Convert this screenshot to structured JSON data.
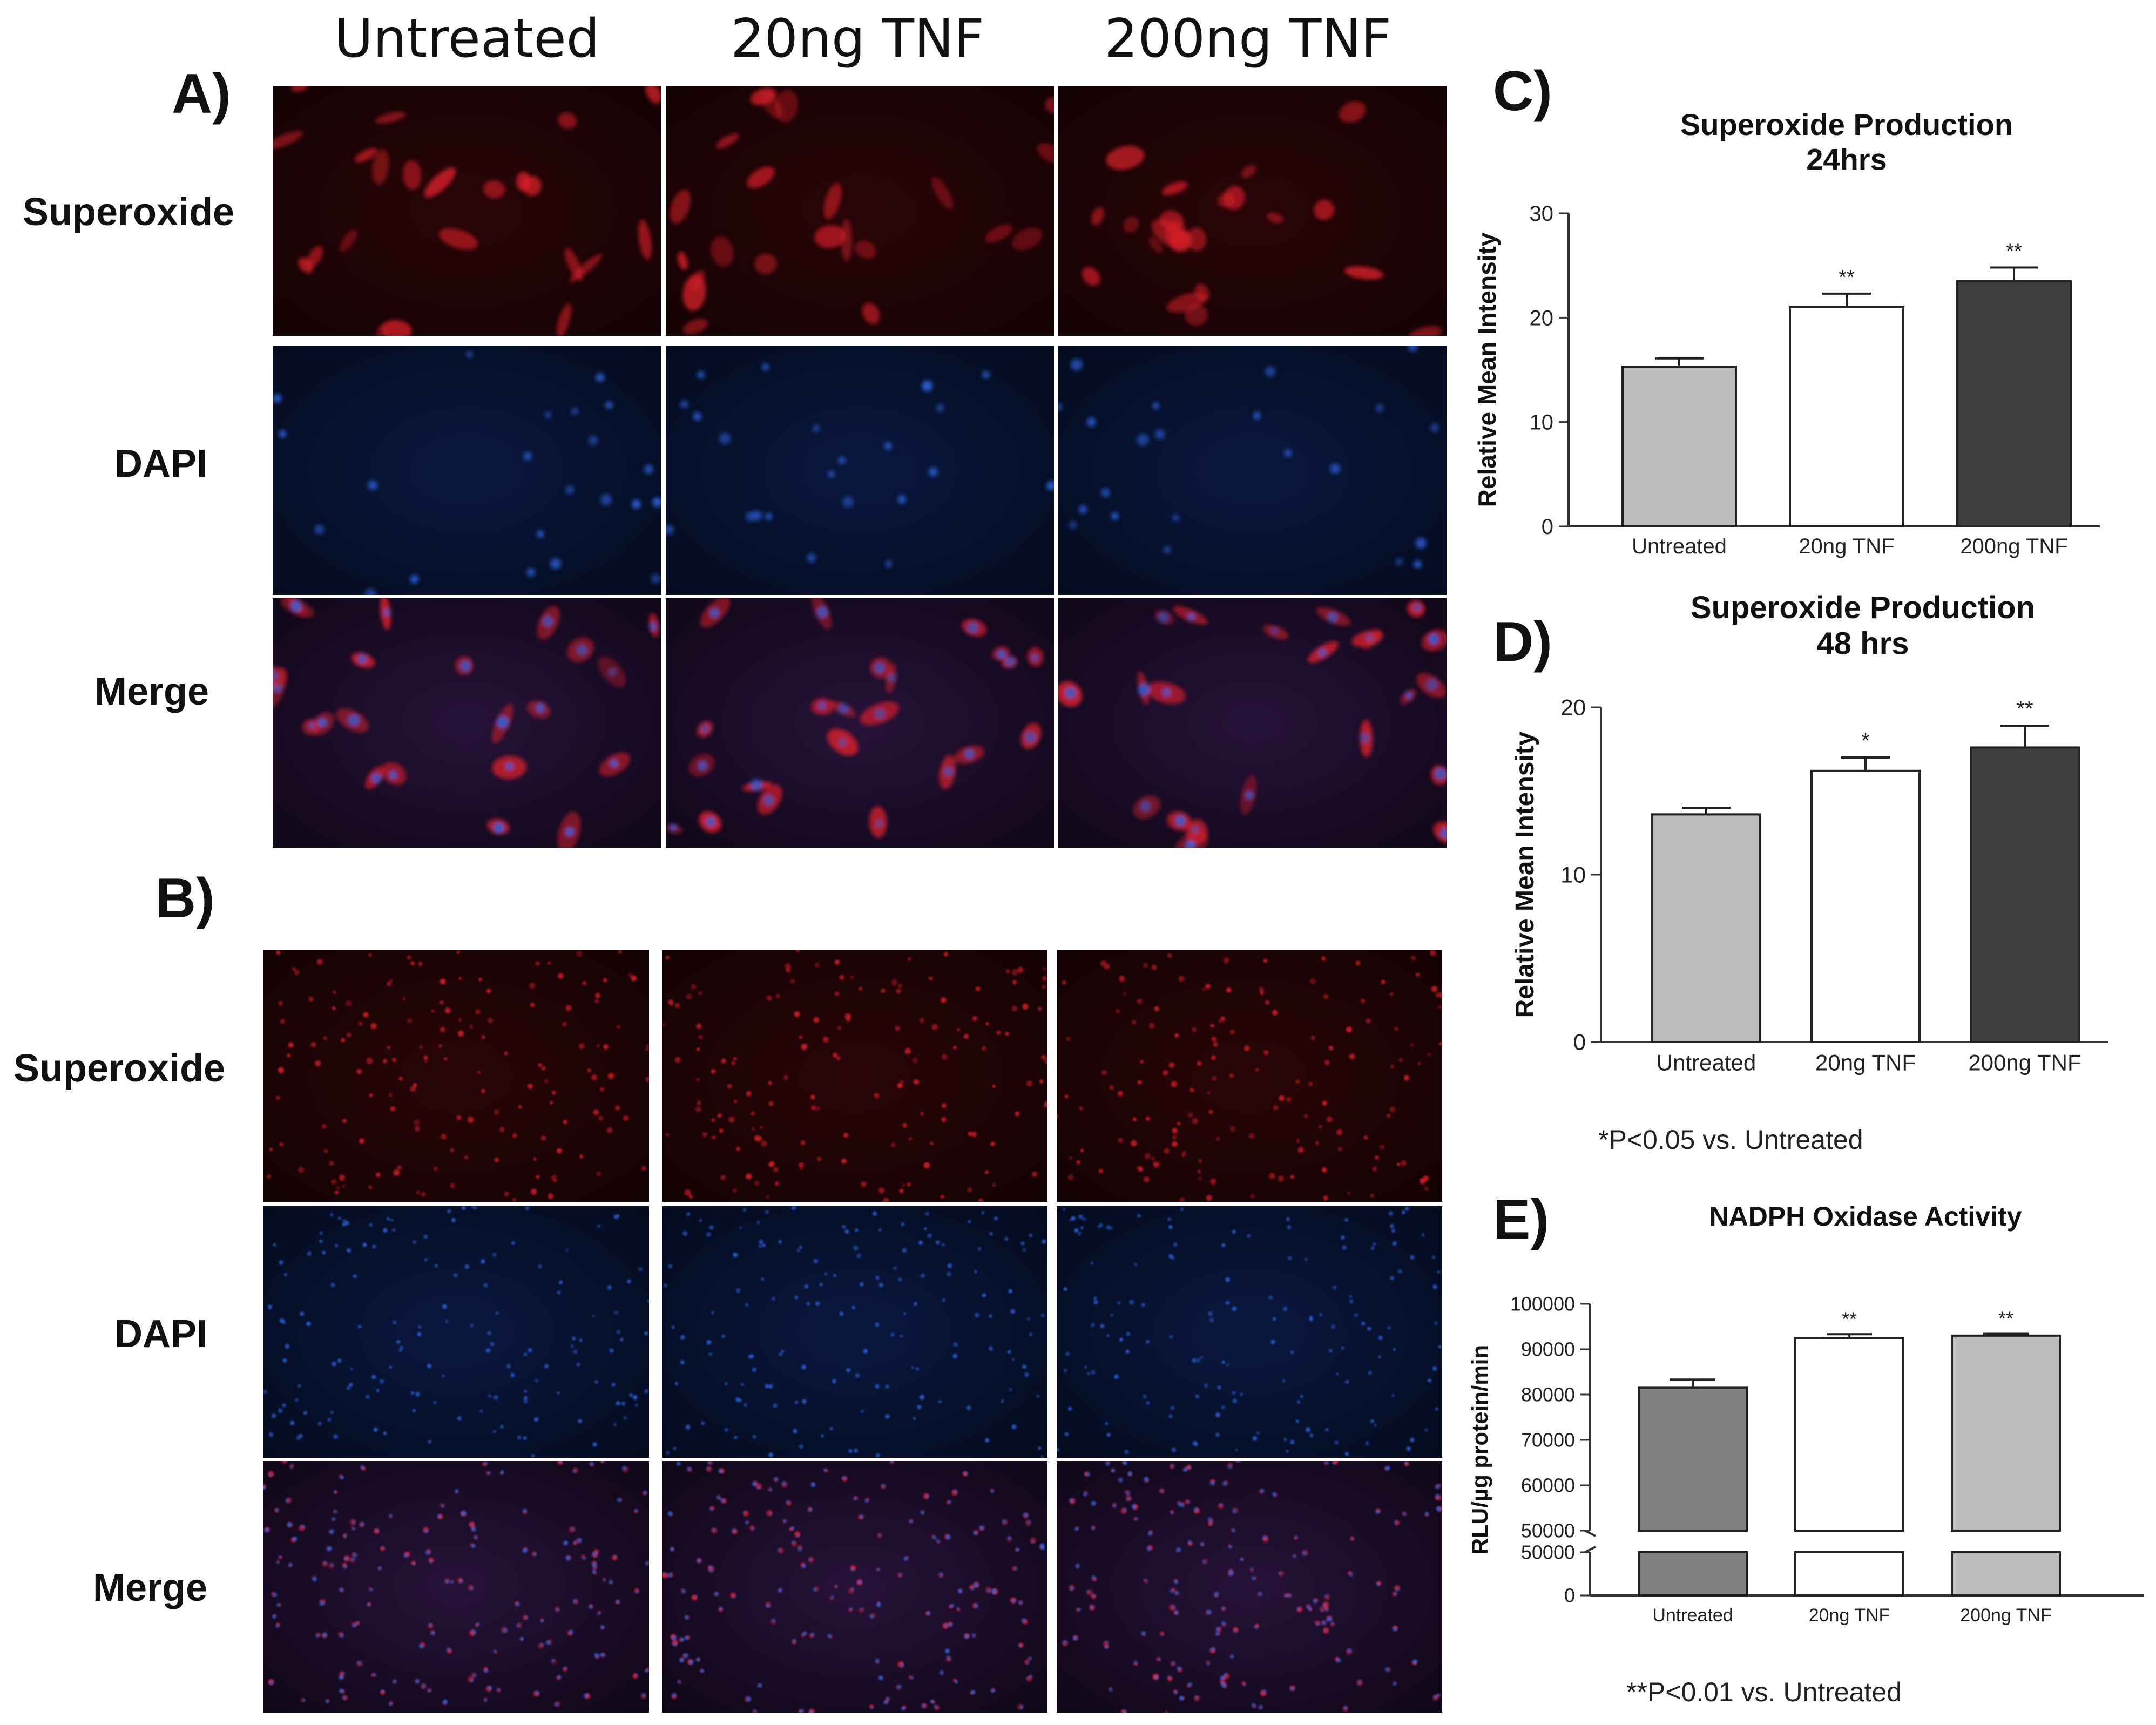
{
  "columns": [
    "Untreated",
    "20ng TNF",
    "200ng TNF"
  ],
  "panel_A": {
    "letter": "A)",
    "rows": [
      "Superoxide",
      "DAPI",
      "Merge"
    ]
  },
  "panel_B": {
    "letter": "B)",
    "rows": [
      "Superoxide",
      "DAPI",
      "Merge"
    ]
  },
  "panel_C": {
    "letter": "C)"
  },
  "panel_D": {
    "letter": "D)"
  },
  "panel_E": {
    "letter": "E)"
  },
  "notes": {
    "p05": "*P<0.05 vs. Untreated",
    "p01": "**P<0.01 vs. Untreated"
  },
  "colors": {
    "light_gray": "#bdbdbd",
    "white": "#ffffff",
    "dark_gray": "#3f3f3f",
    "mid_gray": "#7f7f7f",
    "stain_red": "#e0202a",
    "stain_blue": "#2c5fd6"
  },
  "chart_data": [
    {
      "id": "C",
      "type": "bar",
      "title_lines": [
        "Superoxide Production",
        "24hrs"
      ],
      "ylabel": "Relative Mean Intensity",
      "xlabel": "",
      "categories": [
        "Untreated",
        "20ng TNF",
        "200ng TNF"
      ],
      "values": [
        15.3,
        21.0,
        23.5
      ],
      "errors": [
        0.8,
        1.3,
        1.3
      ],
      "significance": [
        "",
        "**",
        "**"
      ],
      "bar_colors": [
        "#bdbdbd",
        "#ffffff",
        "#3f3f3f"
      ],
      "ylim": [
        0,
        30
      ],
      "yticks": [
        0,
        10,
        20,
        30
      ],
      "ytick_labels": [
        "0",
        "10",
        "20",
        "30"
      ]
    },
    {
      "id": "D",
      "type": "bar",
      "title_lines": [
        "Superoxide Production",
        "48 hrs"
      ],
      "ylabel": "Relative Mean Intensity",
      "xlabel": "",
      "categories": [
        "Untreated",
        "20ng TNF",
        "200ng TNF"
      ],
      "values": [
        13.6,
        16.2,
        17.6
      ],
      "errors": [
        0.4,
        0.8,
        1.3
      ],
      "significance": [
        "",
        "*",
        "**"
      ],
      "bar_colors": [
        "#bdbdbd",
        "#ffffff",
        "#3f3f3f"
      ],
      "ylim": [
        0,
        20
      ],
      "yticks": [
        0,
        10,
        20
      ],
      "ytick_labels": [
        "0",
        "10",
        "20"
      ]
    },
    {
      "id": "E",
      "type": "bar",
      "title_lines": [
        "NADPH Oxidase Activity"
      ],
      "ylabel": "RLU/µg protein/min",
      "xlabel": "",
      "categories": [
        "Untreated",
        "20ng TNF",
        "200ng TNF"
      ],
      "values": [
        81500,
        92500,
        93000
      ],
      "errors": [
        1800,
        800,
        400
      ],
      "significance": [
        "",
        "**",
        "**"
      ],
      "bar_colors": [
        "#7f7f7f",
        "#ffffff",
        "#bdbdbd"
      ],
      "axis_break": true,
      "ylim_upper": [
        50000,
        100000
      ],
      "yticks_upper": [
        50000,
        60000,
        70000,
        80000,
        90000,
        100000
      ],
      "ytick_labels_upper": [
        "50000",
        "60000",
        "70000",
        "80000",
        "90000",
        "100000"
      ],
      "ylim_lower": [
        0,
        50000
      ],
      "yticks_lower": [
        0,
        50000
      ],
      "ytick_labels_lower": [
        "0",
        "50000"
      ]
    }
  ]
}
